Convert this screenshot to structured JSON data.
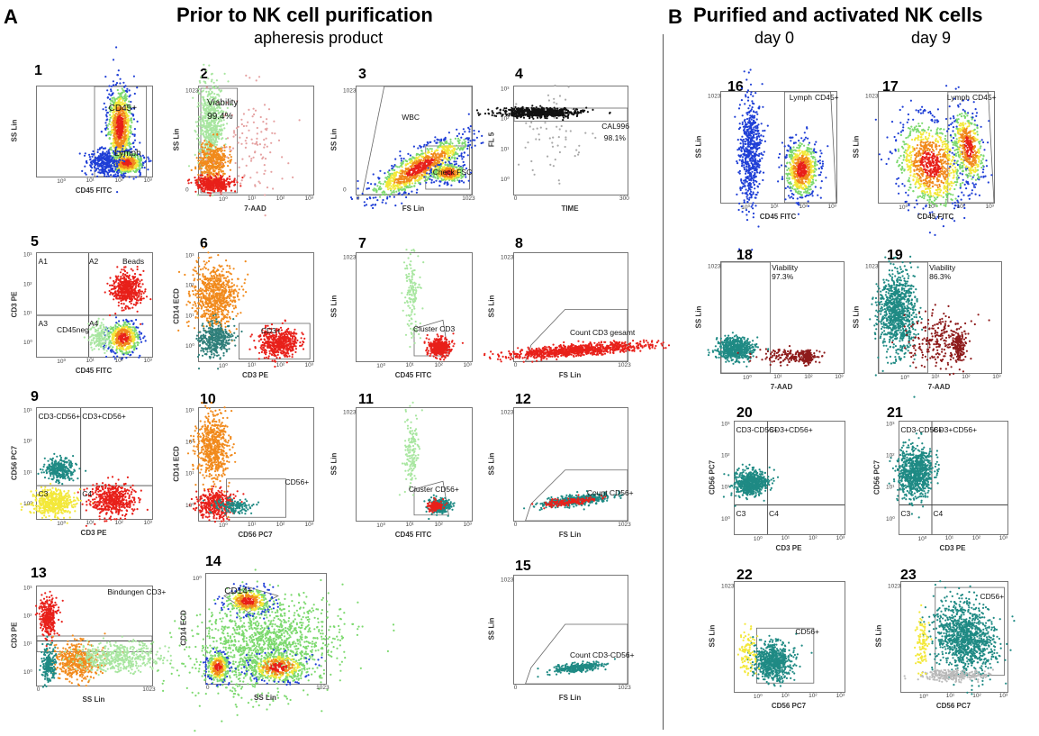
{
  "section_a": {
    "letter": "A",
    "title": "Prior to NK cell purification",
    "subtitle": "apheresis product"
  },
  "section_b": {
    "letter": "B",
    "title": "Purified and activated NK cells",
    "day0": "day 0",
    "day9": "day 9"
  },
  "colors": {
    "density_red": "#e8201a",
    "density_orange": "#f18a1c",
    "density_yellow": "#f3e83a",
    "density_green": "#7cd96e",
    "density_blue": "#1f3fd6",
    "teal": "#1f8a84",
    "dark_red": "#8e1b1b",
    "light_green": "#a8e6a0"
  },
  "plots": [
    {
      "num": "1",
      "x_label": "CD45 FITC",
      "y_label": "SS Lin",
      "gates": [
        "CD45+",
        "Lymph"
      ],
      "x_ticks": [
        "10⁰",
        "10¹",
        "10²",
        "10³"
      ],
      "y_ticks": []
    },
    {
      "num": "2",
      "x_label": "7-AAD",
      "y_label": "SS Lin",
      "gates": [
        "Viability",
        "99.4%"
      ],
      "x_ticks": [
        "10⁰",
        "10¹",
        "10²",
        "10³"
      ],
      "y_ticks": [
        "1023",
        "0"
      ]
    },
    {
      "num": "3",
      "x_label": "FS Lin",
      "y_label": "SS Lin",
      "gates": [
        "WBC",
        "Check FSC"
      ],
      "x_ticks": [
        "0",
        "1023"
      ],
      "y_ticks": [
        "1023",
        "0"
      ]
    },
    {
      "num": "4",
      "x_label": "TIME",
      "y_label": "FL 5",
      "gates": [
        "CAL996",
        "98.1%"
      ],
      "x_ticks": [
        "0",
        "300"
      ],
      "y_ticks": [
        "10³",
        "10²",
        "10¹",
        "10⁰"
      ]
    },
    {
      "num": "5",
      "x_label": "CD45 FITC",
      "y_label": "CD3 PE",
      "gates": [
        "A1",
        "A2",
        "Beads",
        "A3",
        "CD45neg",
        "A4"
      ],
      "x_ticks": [
        "10⁰",
        "10¹",
        "10²",
        "10³"
      ],
      "y_ticks": [
        "10³",
        "10²",
        "10¹",
        "10⁰"
      ]
    },
    {
      "num": "6",
      "x_label": "CD3 PE",
      "y_label": "CD14 ECD",
      "gates": [
        "CD3+"
      ],
      "x_ticks": [
        "10⁰",
        "10¹",
        "10²",
        "10³"
      ],
      "y_ticks": [
        "10³",
        "10²",
        "10¹",
        "10⁰"
      ]
    },
    {
      "num": "7",
      "x_label": "CD45 FITC",
      "y_label": "SS Lin",
      "gates": [
        "Cluster CD3"
      ],
      "x_ticks": [
        "10⁰",
        "10¹",
        "10²",
        "10³"
      ],
      "y_ticks": [
        "1023"
      ]
    },
    {
      "num": "8",
      "x_label": "FS Lin",
      "y_label": "SS Lin",
      "gates": [
        "Count CD3 gesamt"
      ],
      "x_ticks": [
        "0",
        "1023"
      ],
      "y_ticks": [
        "1023"
      ]
    },
    {
      "num": "9",
      "x_label": "CD3 PE",
      "y_label": "CD56 PC7",
      "gates": [
        "CD3-CD56+",
        "CD3+CD56+",
        "C3",
        "C4"
      ],
      "x_ticks": [
        "10⁰",
        "10¹",
        "10²",
        "10³"
      ],
      "y_ticks": [
        "10³",
        "10²",
        "10¹",
        "10⁰"
      ]
    },
    {
      "num": "10",
      "x_label": "CD56 PC7",
      "y_label": "CD14 ECD",
      "gates": [
        "CD56+"
      ],
      "x_ticks": [
        "10⁰",
        "10¹",
        "10²",
        "10³"
      ],
      "y_ticks": [
        "10³",
        "10²",
        "10¹",
        "10⁰"
      ]
    },
    {
      "num": "11",
      "x_label": "CD45 FITC",
      "y_label": "SS Lin",
      "gates": [
        "Cluster CD56+"
      ],
      "x_ticks": [
        "10⁰",
        "10¹",
        "10²",
        "10³"
      ],
      "y_ticks": [
        "1023"
      ]
    },
    {
      "num": "12",
      "x_label": "FS Lin",
      "y_label": "SS Lin",
      "gates": [
        "Count CD56+"
      ],
      "x_ticks": [
        "0",
        "1023"
      ],
      "y_ticks": [
        "1023"
      ]
    },
    {
      "num": "13",
      "x_label": "SS Lin",
      "y_label": "CD3 PE",
      "gates": [
        "Bindungen CD3+"
      ],
      "x_ticks": [
        "0",
        "1023"
      ],
      "y_ticks": [
        "10³",
        "10²",
        "10¹",
        "10⁰"
      ]
    },
    {
      "num": "14",
      "x_label": "SS Lin",
      "y_label": "CD14 ECD",
      "gates": [
        "CD14+"
      ],
      "x_ticks": [
        "0",
        "1023"
      ],
      "y_ticks": [
        "10⁰"
      ]
    },
    {
      "num": "15",
      "x_label": "FS Lin",
      "y_label": "SS Lin",
      "gates": [
        "Count CD3-CD56+"
      ],
      "x_ticks": [
        "0",
        "1023"
      ],
      "y_ticks": [
        "1023"
      ]
    },
    {
      "num": "16",
      "x_label": "CD45 FITC",
      "y_label": "SS Lin",
      "gates": [
        "Lymph",
        "CD45+"
      ],
      "x_ticks": [
        "10⁰",
        "10¹",
        "10²",
        "10³"
      ],
      "y_ticks": [
        "1023"
      ]
    },
    {
      "num": "17",
      "x_label": "CD45 FITC",
      "y_label": "SS Lin",
      "gates": [
        "Lymph",
        "CD45+"
      ],
      "x_ticks": [
        "10⁰",
        "10¹",
        "10²",
        "10³"
      ],
      "y_ticks": [
        "1023"
      ]
    },
    {
      "num": "18",
      "x_label": "7-AAD",
      "y_label": "SS Lin",
      "gates": [
        "Viability",
        "97.3%"
      ],
      "x_ticks": [
        "10⁰",
        "10¹",
        "10²",
        "10³"
      ],
      "y_ticks": [
        "1023"
      ]
    },
    {
      "num": "19",
      "x_label": "7-AAD",
      "y_label": "SS Lin",
      "gates": [
        "Viability",
        "86.3%"
      ],
      "x_ticks": [
        "10⁰",
        "10¹",
        "10²",
        "10³"
      ],
      "y_ticks": [
        "1023"
      ]
    },
    {
      "num": "20",
      "x_label": "CD3 PE",
      "y_label": "CD56 PC7",
      "gates": [
        "CD3-CD56+",
        "CD3+CD56+",
        "C3",
        "C4"
      ],
      "x_ticks": [
        "10⁰",
        "10¹",
        "10²",
        "10³"
      ],
      "y_ticks": [
        "10³",
        "10²",
        "10¹",
        "10⁰"
      ]
    },
    {
      "num": "21",
      "x_label": "CD3 PE",
      "y_label": "CD56 PC7",
      "gates": [
        "CD3-CD56+",
        "CD3+CD56+",
        "C3",
        "C4"
      ],
      "x_ticks": [
        "10⁰",
        "10¹",
        "10²",
        "10³"
      ],
      "y_ticks": [
        "10³",
        "10²",
        "10¹",
        "10⁰"
      ]
    },
    {
      "num": "22",
      "x_label": "CD56 PC7",
      "y_label": "SS Lin",
      "gates": [
        "CD56+"
      ],
      "x_ticks": [
        "10⁰",
        "10¹",
        "10²",
        "10³"
      ],
      "y_ticks": [
        "1023"
      ]
    },
    {
      "num": "23",
      "x_label": "CD56 PC7",
      "y_label": "SS Lin",
      "gates": [
        "CD56+"
      ],
      "x_ticks": [
        "10⁰",
        "10¹",
        "10²",
        "10³"
      ],
      "y_ticks": [
        "1023"
      ]
    }
  ]
}
